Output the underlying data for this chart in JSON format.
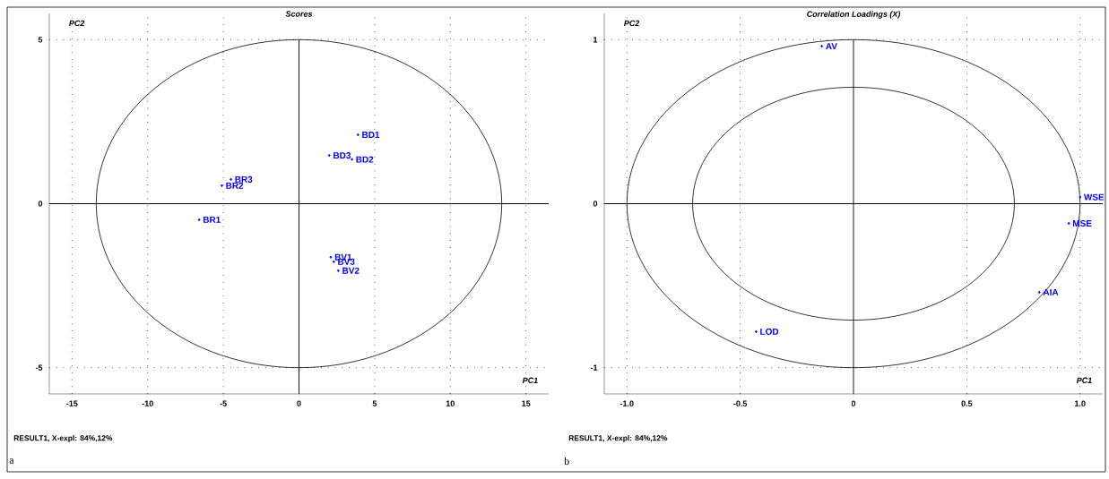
{
  "chart_data": [
    {
      "type": "scatter",
      "title": "Scores",
      "xlabel": "PC1",
      "ylabel": "PC2",
      "xlim": [
        -16.5,
        16.5
      ],
      "ylim": [
        -5.8,
        5.8
      ],
      "xticks": [
        -15,
        -10,
        -5,
        0,
        5,
        10,
        15
      ],
      "yticks": [
        -5,
        0,
        5
      ],
      "grid": true,
      "series": [
        {
          "type": "scatter",
          "color": "#0000ff",
          "marker": "diamond",
          "x": [
            3.9,
            2.0,
            3.5,
            -4.5,
            -5.1,
            -6.6,
            2.1,
            2.3,
            2.6
          ],
          "values": [
            2.1,
            1.47,
            1.35,
            0.74,
            0.55,
            -0.49,
            -1.63,
            -1.77,
            -2.04
          ]
        }
      ],
      "annotations": [
        {
          "text": "BD1",
          "x": 3.9,
          "y": 2.1
        },
        {
          "text": "BD3",
          "x": 2.0,
          "y": 1.47
        },
        {
          "text": "BD2",
          "x": 3.5,
          "y": 1.35
        },
        {
          "text": "BR3",
          "x": -4.5,
          "y": 0.74
        },
        {
          "text": "BR2",
          "x": -5.1,
          "y": 0.55
        },
        {
          "text": "BR1",
          "x": -6.6,
          "y": -0.49
        },
        {
          "text": "BV1",
          "x": 2.1,
          "y": -1.63
        },
        {
          "text": "BV3",
          "x": 2.3,
          "y": -1.77
        },
        {
          "text": "BV2",
          "x": 2.6,
          "y": -2.04
        },
        "RESULT1, X-expl: 84%,12%",
        "a"
      ]
    },
    {
      "type": "scatter",
      "title": "Correlation Loadings (X)",
      "xlabel": "PC1",
      "ylabel": "PC2",
      "xlim": [
        -1.1,
        1.1
      ],
      "ylim": [
        -1.16,
        1.16
      ],
      "xticks": [
        {
          "value": -1,
          "label": "-1.0"
        },
        -0.5,
        0,
        0.5,
        {
          "value": 1,
          "label": "1.0"
        }
      ],
      "yticks": [
        -1,
        0,
        1
      ],
      "grid": true,
      "series": [
        {
          "type": "scatter",
          "color": "#0000ff",
          "marker": "diamond",
          "x": [
            -0.14,
            1.0,
            0.95,
            0.82,
            -0.43
          ],
          "values": [
            0.96,
            0.04,
            -0.12,
            -0.54,
            -0.78
          ]
        }
      ],
      "annotations": [
        {
          "text": "AV",
          "x": -0.14,
          "y": 0.96
        },
        {
          "text": "WSE",
          "x": 1.0,
          "y": 0.04
        },
        {
          "text": "MSE",
          "x": 0.95,
          "y": -0.12
        },
        {
          "text": "AIA",
          "x": 0.82,
          "y": -0.54
        },
        {
          "text": "LOD",
          "x": -0.43,
          "y": -0.78
        },
        "RESULT1, X-expl: 84%,12%",
        "b"
      ]
    }
  ]
}
